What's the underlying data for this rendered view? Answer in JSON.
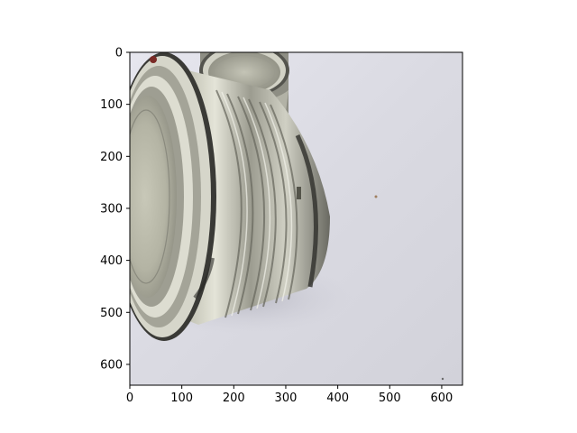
{
  "figure": {
    "image_subject": "two metal tin cans on a white surface",
    "colors": {
      "background": "#ffffff",
      "surface": "#dcdce4",
      "metal_light": "#d8d8cc",
      "metal_mid": "#a8a89c",
      "metal_dark": "#3a3a36",
      "axis": "#000000"
    }
  },
  "chart_data": {
    "type": "image",
    "xlim": [
      0,
      640
    ],
    "ylim": [
      640,
      0
    ],
    "x_ticks": [
      "0",
      "100",
      "200",
      "300",
      "400",
      "500",
      "600"
    ],
    "y_ticks": [
      "0",
      "100",
      "200",
      "300",
      "400",
      "500",
      "600"
    ],
    "x_tick_values": [
      0,
      100,
      200,
      300,
      400,
      500,
      600
    ],
    "y_tick_values": [
      0,
      100,
      200,
      300,
      400,
      500,
      600
    ],
    "grid": false
  }
}
